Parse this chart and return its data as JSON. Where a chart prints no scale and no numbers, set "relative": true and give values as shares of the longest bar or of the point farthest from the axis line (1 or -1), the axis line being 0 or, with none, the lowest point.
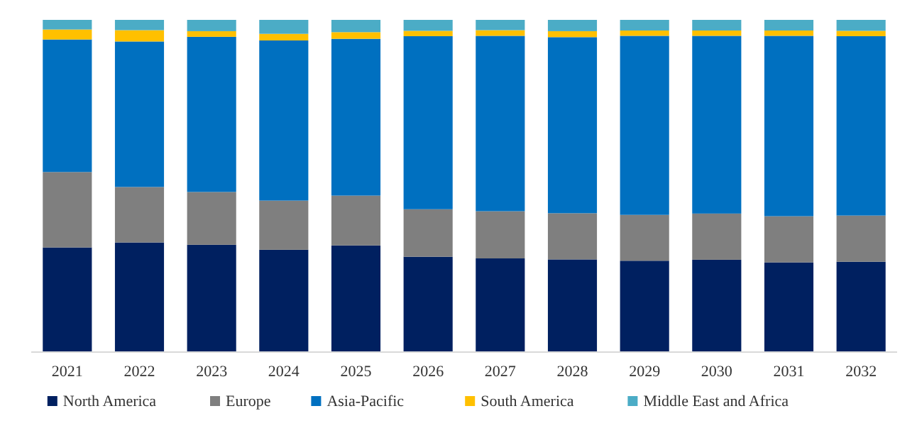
{
  "chart_data": {
    "type": "bar",
    "stacked": true,
    "relative": true,
    "legend": "bottom",
    "categories": [
      "2021",
      "2022",
      "2023",
      "2024",
      "2025",
      "2026",
      "2027",
      "2028",
      "2029",
      "2030",
      "2031",
      "2032"
    ],
    "series": [
      {
        "name": "North America",
        "color": "#002060",
        "values": [
          0.315,
          0.33,
          0.323,
          0.308,
          0.321,
          0.287,
          0.282,
          0.279,
          0.275,
          0.278,
          0.27,
          0.272
        ]
      },
      {
        "name": "Europe",
        "color": "#7f7f7f",
        "values": [
          0.227,
          0.167,
          0.159,
          0.148,
          0.15,
          0.143,
          0.142,
          0.139,
          0.138,
          0.139,
          0.139,
          0.139
        ]
      },
      {
        "name": "Asia-Pacific",
        "color": "#0070c0",
        "values": [
          0.399,
          0.438,
          0.467,
          0.482,
          0.472,
          0.521,
          0.528,
          0.53,
          0.539,
          0.535,
          0.543,
          0.54
        ]
      },
      {
        "name": "South America",
        "color": "#ffc000",
        "values": [
          0.03,
          0.034,
          0.017,
          0.02,
          0.02,
          0.016,
          0.017,
          0.018,
          0.016,
          0.016,
          0.016,
          0.016
        ]
      },
      {
        "name": "Middle East and Africa",
        "color": "#4bacc6",
        "values": [
          0.029,
          0.031,
          0.034,
          0.042,
          0.037,
          0.033,
          0.031,
          0.034,
          0.032,
          0.032,
          0.032,
          0.033
        ]
      }
    ]
  }
}
